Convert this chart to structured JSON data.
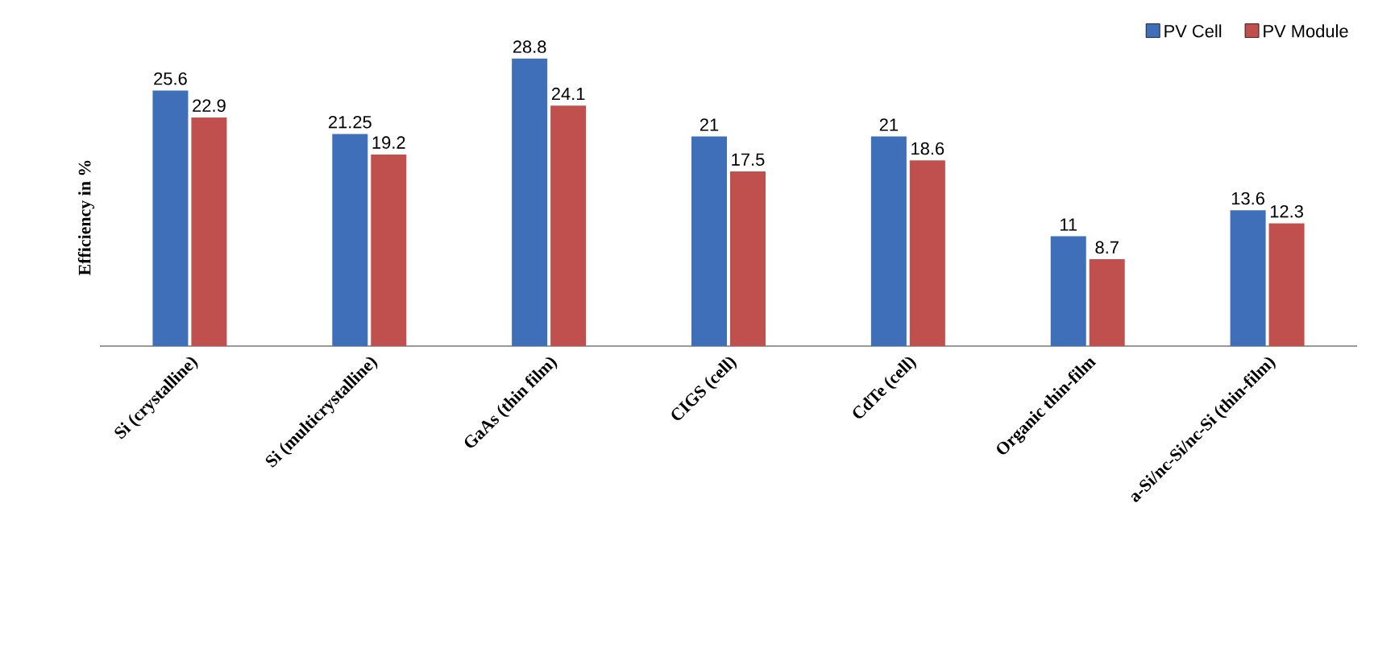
{
  "chart_data": {
    "type": "bar",
    "ylabel": "Efficiency in %",
    "categories": [
      "Si (crystalline)",
      "Si (multicrystalline)",
      "GaAs (thin film)",
      "CIGS (cell)",
      "CdTe (cell)",
      "Organic thin-film",
      "a-Si/nc-Si/nc-Si (thin-film)"
    ],
    "series": [
      {
        "name": "PV Cell",
        "color": "#3e6fb8",
        "values": [
          25.6,
          21.25,
          28.8,
          21,
          21,
          11,
          13.6
        ]
      },
      {
        "name": "PV Module",
        "color": "#c0504d",
        "values": [
          22.9,
          19.2,
          24.1,
          17.5,
          18.6,
          8.7,
          12.3
        ]
      }
    ],
    "data_labels": true,
    "legend": "top right"
  }
}
